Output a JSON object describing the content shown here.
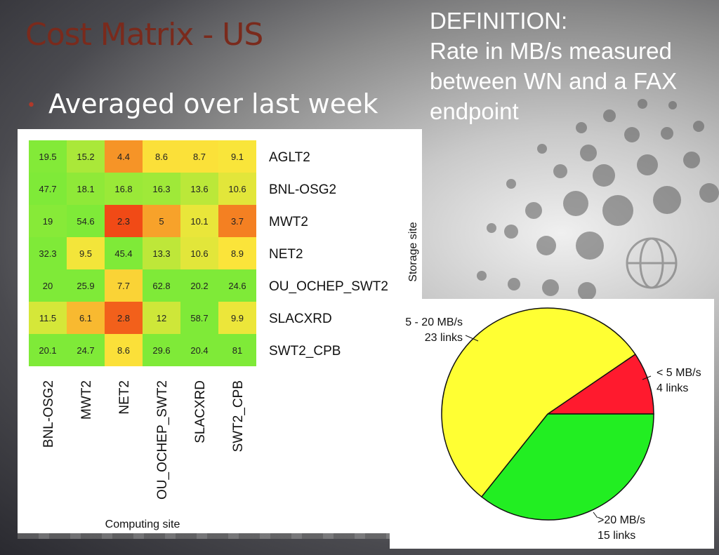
{
  "slide": {
    "title": "Cost Matrix - US",
    "bullet": "Averaged over last week",
    "definition": {
      "heading": "DEFINITION:",
      "lines": [
        "Rate in MB/s measured",
        "between WN and a FAX",
        "endpoint"
      ]
    }
  },
  "chart_data": [
    {
      "type": "heatmap",
      "xlabel": "Computing site",
      "ylabel": "Storage site",
      "x_categories": [
        "BNL-OSG2",
        "MWT2",
        "NET2",
        "OU_OCHEP_SWT2",
        "SLACXRD",
        "SWT2_CPB"
      ],
      "y_categories": [
        "AGLT2",
        "BNL-OSG2",
        "MWT2",
        "NET2",
        "OU_OCHEP_SWT2",
        "SLACXRD",
        "SWT2_CPB"
      ],
      "values": [
        [
          "19.5",
          "15.2",
          "4.4",
          "8.6",
          "8.7",
          "9.1"
        ],
        [
          "47.7",
          "18.1",
          "16.8",
          "16.3",
          "13.6",
          "10.6"
        ],
        [
          "19",
          "54.6",
          "2.3",
          "5",
          "10.1",
          "3.7"
        ],
        [
          "32.3",
          "9.5",
          "45.4",
          "13.3",
          "10.6",
          "8.9"
        ],
        [
          "20",
          "25.9",
          "7.7",
          "62.8",
          "20.2",
          "24.6"
        ],
        [
          "11.5",
          "6.1",
          "2.8",
          "12",
          "58.7",
          "9.9"
        ],
        [
          "20.1",
          "24.7",
          "8.6",
          "29.6",
          "20.4",
          "81"
        ]
      ],
      "colors": {
        "low": "#f03a12",
        "mid": "#fbe53a",
        "high": "#7fea38"
      }
    },
    {
      "type": "pie",
      "slices": [
        {
          "label": "< 5 MB/s",
          "count_label": "4 links",
          "value": 4,
          "color": "#ff1a2e"
        },
        {
          "label": ">20 MB/s",
          "count_label": "15 links",
          "value": 15,
          "color": "#22ee22"
        },
        {
          "label": "5 - 20 MB/s",
          "count_label": "23 links",
          "value": 23,
          "color": "#ffff33"
        }
      ]
    }
  ]
}
